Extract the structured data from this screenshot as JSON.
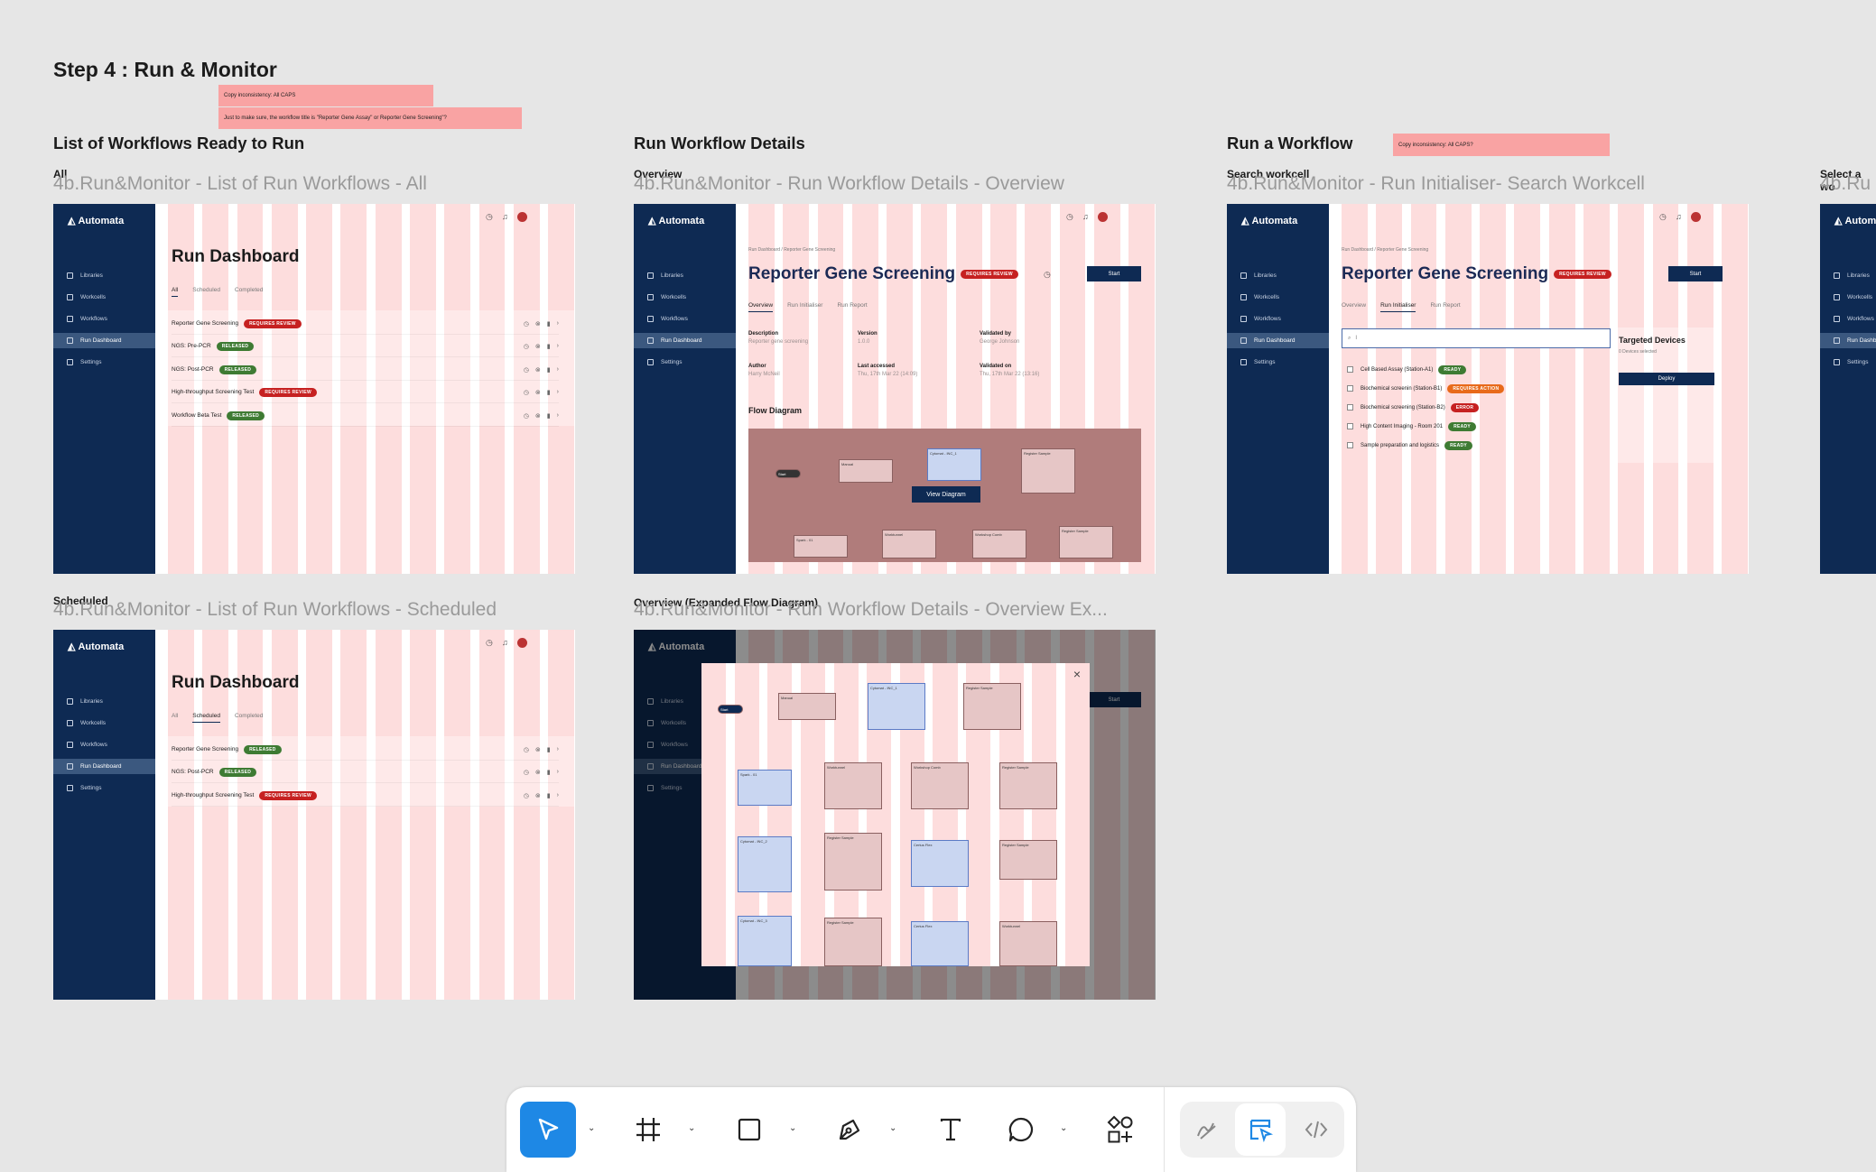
{
  "canvas": {
    "step_title": "Step 4 : Run & Monitor",
    "notes": {
      "caps_1": "Copy inconsistency: All CAPS",
      "workflow_title": "Just to make sure, the workflow title is \"Reporter Gene Assay\" or Reporter Gene Screening\"?",
      "caps_2": "Copy inconsistency: All CAPS?"
    },
    "sections": {
      "list": "List of Workflows Ready to Run",
      "details": "Run Workflow Details",
      "run": "Run a Workflow",
      "select_partial": "Select a wo"
    },
    "frame_labels": {
      "all": "All",
      "overview": "Overview",
      "search_workcell": "Search workcell",
      "scheduled": "Scheduled",
      "overview_expanded": "Overview (Expanded Flow Diagram)"
    },
    "frame_titles": {
      "all": "4b.Run&Monitor - List of Run Workflows - All",
      "overview": "4b.Run&Monitor - Run Workflow Details - Overview",
      "search": "4b.Run&Monitor - Run Initialiser- Search Workcell",
      "scheduled": "4b.Run&Monitor - List of Run Workflows - Scheduled",
      "overview_expanded": "4b.Run&Monitor - Run Workflow Details - Overview Ex...",
      "partial": "4b.Ru"
    }
  },
  "app": {
    "logo": "Automata",
    "nav": [
      "Libraries",
      "Workcells",
      "Workflows",
      "Run Dashboard",
      "Settings"
    ],
    "active_nav": "Run Dashboard",
    "breadcrumb": "Run Dashboard  /  Reporter Gene Screening",
    "dashboard_title": "Run Dashboard",
    "list_tabs": [
      "All",
      "Scheduled",
      "Completed"
    ],
    "workflows_all": [
      {
        "name": "Reporter Gene Screening",
        "badge": "REQUIRES REVIEW",
        "status": "red"
      },
      {
        "name": "NGS: Pre-PCR",
        "badge": "RELEASED",
        "status": "green"
      },
      {
        "name": "NGS: Post-PCR",
        "badge": "RELEASED",
        "status": "green"
      },
      {
        "name": "High-throughput Screening Test",
        "badge": "REQUIRES REVIEW",
        "status": "red"
      },
      {
        "name": "Workflow Beta Test",
        "badge": "RELEASED",
        "status": "green"
      }
    ],
    "workflows_scheduled": [
      {
        "name": "Reporter Gene Screening",
        "badge": "RELEASED",
        "status": "green"
      },
      {
        "name": "NGS: Post-PCR",
        "badge": "RELEASED",
        "status": "green"
      },
      {
        "name": "High-throughput Screening Test",
        "badge": "REQUIRES REVIEW",
        "status": "red"
      }
    ],
    "workflow_title": "Reporter Gene Screening",
    "workflow_badge": "REQUIRES REVIEW",
    "start_label": "Start",
    "detail_tabs": [
      "Overview",
      "Run Initialiser",
      "Run Report"
    ],
    "details": {
      "description_label": "Description",
      "description": "Reporter gene screening",
      "version_label": "Version",
      "version": "1.0.0",
      "validated_by_label": "Validated by",
      "validated_by": "George Johnson",
      "author_label": "Author",
      "author": "Harry McNeil",
      "last_accessed_label": "Last accessed",
      "last_accessed": "Thu, 17th Mar 22 (14:09)",
      "validated_on_label": "Validated on",
      "validated_on": "Thu, 17th Mar 22 (13:16)"
    },
    "flow_diagram_label": "Flow Diagram",
    "view_diagram_label": "View Diagram",
    "flow_nodes": [
      "Start",
      "Manual",
      "Cytomat - INC_1",
      "Register Sample",
      "Spark - 01",
      "Worktunnel",
      "Workshop Comb",
      "Register Sample",
      "Cytomat - INC_2",
      "Register Sample",
      "Certus Flex",
      "Register Sample",
      "Cytomat - INC_3",
      "Register Sample",
      "Certus Flex",
      "Worktunnel"
    ],
    "search_placeholder": "Search by workcell",
    "search_value": "I",
    "workcells": [
      {
        "name": "Cell Based Assay (Station-A1)",
        "badge": "READY",
        "status": "green"
      },
      {
        "name": "Biochemical screenin (Station-B1)",
        "badge": "REQUIRES ACTION",
        "status": "orange"
      },
      {
        "name": "Biochemical screening (Station-B2)",
        "badge": "ERROR",
        "status": "red"
      },
      {
        "name": "High Content Imaging - Room 201",
        "badge": "READY",
        "status": "green"
      },
      {
        "name": "Sample preparation and logistics",
        "badge": "READY",
        "status": "green"
      }
    ],
    "targeted_devices_title": "Targeted Devices",
    "targeted_devices_count": "0 Devices selected",
    "deploy_label": "Deploy"
  },
  "toolbar": {
    "tools": [
      "move-tool",
      "frame-tool",
      "shape-tool",
      "pen-tool",
      "text-tool",
      "comment-tool",
      "components-tool"
    ],
    "modes": [
      "draw-mode",
      "design-mode",
      "dev-mode"
    ],
    "active_tool": "move-tool",
    "active_mode": "design-mode"
  },
  "colors": {
    "sidebar": "#0e2a53",
    "canvas": "#e6e6e6",
    "note": "#f9a3a3",
    "badge_red": "#c62121",
    "badge_green": "#3e7b33",
    "badge_orange": "#e86a1a",
    "tool_active": "#1e88e5"
  }
}
